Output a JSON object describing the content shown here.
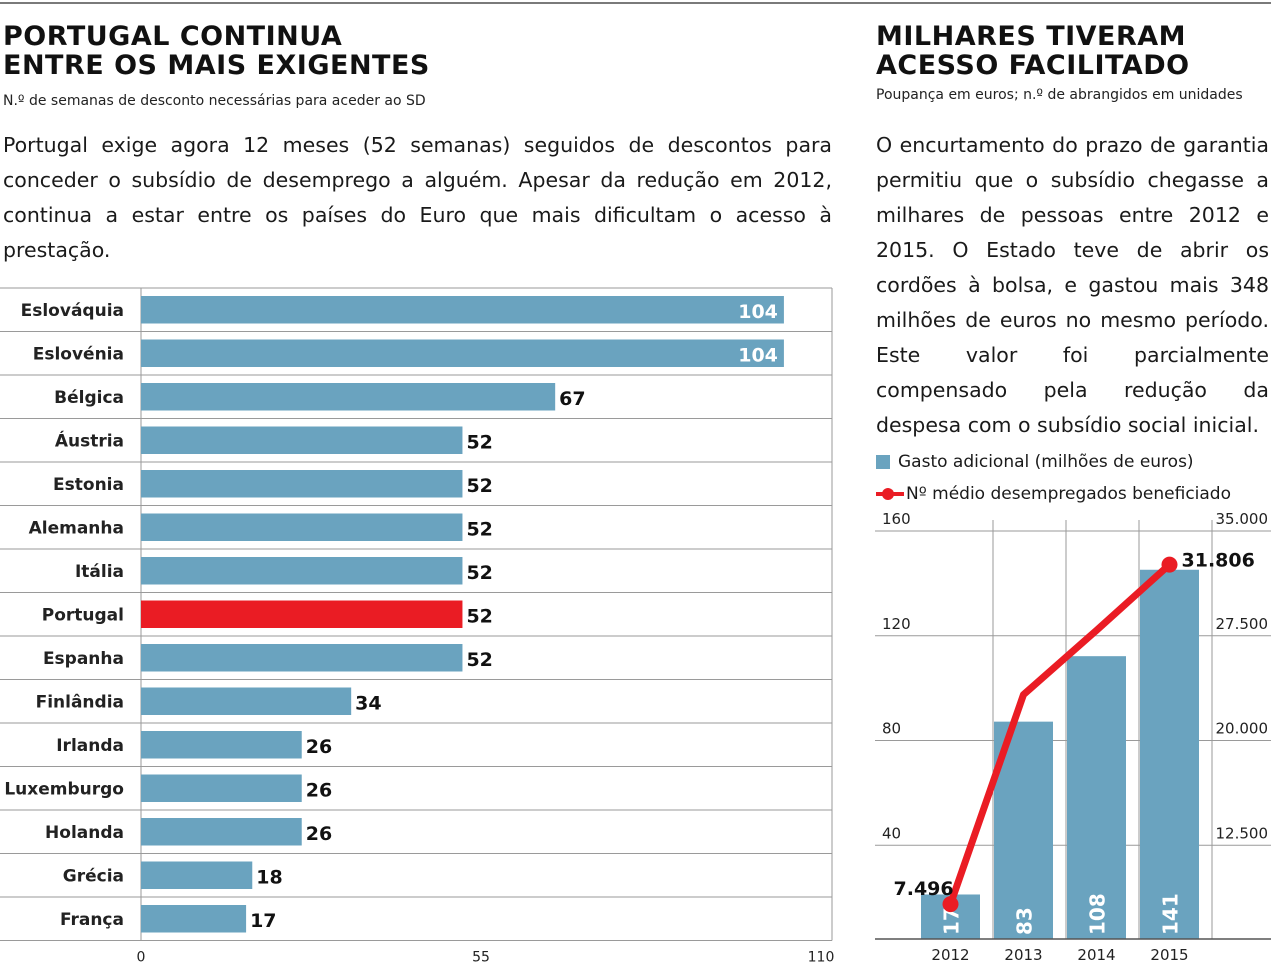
{
  "left_panel": {
    "title_line1": "PORTUGAL CONTINUA",
    "title_line2": "ENTRE OS MAIS EXIGENTES",
    "subtitle": "N.º de semanas de desconto necessárias para aceder ao SD",
    "intro": "Portugal exige agora 12 meses (52 semanas) seguidos de descontos para conceder o subsídio de desemprego a alguém. Apesar da redução em 2012, continua a estar entre os países do Euro que mais dificultam o acesso à prestação."
  },
  "right_panel": {
    "title_line1": "MILHARES TIVERAM",
    "title_line2": "ACESSO FACILITADO",
    "subtitle": "Poupança em euros; n.º de abrangidos em unidades",
    "intro": "O encurtamento do prazo de garantia permitiu que o subsídio chegasse a milhares de pessoas entre 2012 e 2015. O Estado teve de abrir os cordões à bolsa, e gastou mais 348 milhões de euros no mesmo período. Este valor foi parcialmente compensado pela redução da despesa com o subsídio social inicial.",
    "legend_bar": "Gasto adicional (milhões de euros)",
    "legend_line": "Nº médio desempregados beneficiado"
  },
  "colors": {
    "bar": "#6aa3bf",
    "highlight": "#ea1c24",
    "line": "#ea1c24",
    "grid": "#9a9a9a"
  },
  "chart_data": [
    {
      "type": "bar",
      "orientation": "horizontal",
      "title": "PORTUGAL CONTINUA ENTRE OS MAIS EXIGENTES",
      "subtitle": "N.º de semanas de desconto necessárias para aceder ao SD",
      "categories": [
        "Eslováquia",
        "Eslovénia",
        "Bélgica",
        "Áustria",
        "Estonia",
        "Alemanha",
        "Itália",
        "Portugal",
        "Espanha",
        "Finlândia",
        "Irlanda",
        "Luxemburgo",
        "Holanda",
        "Grécia",
        "França"
      ],
      "values": [
        104,
        104,
        67,
        52,
        52,
        52,
        52,
        52,
        52,
        34,
        26,
        26,
        26,
        18,
        17
      ],
      "highlight": "Portugal",
      "xlim": [
        0,
        110
      ],
      "xticks": [
        "0",
        "55",
        "110"
      ],
      "grid": true
    },
    {
      "type": "bar",
      "combo": "bar+line",
      "title": "MILHARES TIVERAM ACESSO FACILITADO",
      "subtitle": "Poupança em euros; n.º de abrangidos em unidades",
      "categories": [
        "2012",
        "2013",
        "2014",
        "2015"
      ],
      "series": [
        {
          "name": "Gasto adicional (milhões de euros)",
          "type": "bar",
          "values": [
            17,
            83,
            108,
            141
          ],
          "axis": "left"
        },
        {
          "name": "Nº médio desempregados beneficiado",
          "type": "line",
          "values": [
            7496,
            22500,
            27100,
            31806
          ],
          "axis": "right"
        }
      ],
      "annotations": [
        "7.496",
        "31.806"
      ],
      "left_axis": {
        "ylim": [
          0,
          160
        ],
        "ticks": [
          "40",
          "80",
          "120",
          "160"
        ]
      },
      "right_axis": {
        "ylim": [
          5000,
          35000
        ],
        "ticks": [
          "12.500",
          "20.000",
          "27.500",
          "35.000"
        ]
      },
      "grid": true,
      "legend": "top"
    }
  ]
}
